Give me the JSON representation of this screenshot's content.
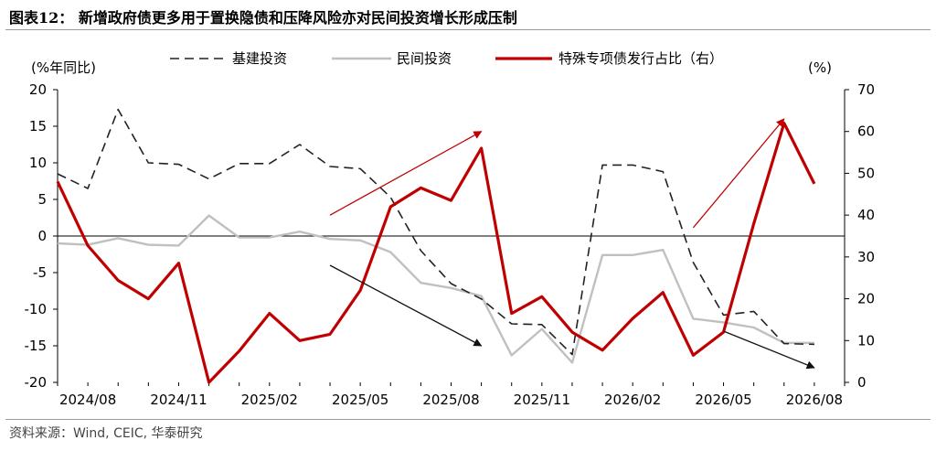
{
  "title": "图表12：  新增政府债更多用于置换隐债和压降风险亦对民间投资增长形成压制",
  "source": "资料来源：Wind, CEIC, 华泰研究",
  "colors": {
    "infra": "#222222",
    "private": "#c0c0c0",
    "special_bond": "#c00000",
    "arrow_red": "#c00000",
    "arrow_black": "#111111"
  },
  "chart_data": {
    "type": "line",
    "left_unit_label": "(%年同比)",
    "right_unit_label": "(%)",
    "x": [
      "2024/07",
      "2024/08",
      "2024/09",
      "2024/10",
      "2024/11",
      "2024/12",
      "2025/01",
      "2025/02",
      "2025/03",
      "2025/04",
      "2025/05",
      "2025/06",
      "2025/07",
      "2025/08",
      "2025/09",
      "2025/10",
      "2025/11",
      "2025/12",
      "2026/01",
      "2026/02",
      "2026/03",
      "2026/04",
      "2026/05",
      "2026/06",
      "2026/07",
      "2026/08",
      "2026/09"
    ],
    "x_tick_labels": [
      "2024/08",
      "2024/11",
      "2025/02",
      "2025/05",
      "2025/08",
      "2025/11",
      "2026/02",
      "2026/05",
      "2026/08"
    ],
    "ylim_left": [
      -20,
      20
    ],
    "yticks_left": [
      20,
      15,
      10,
      5,
      0,
      -5,
      -10,
      -15,
      -20
    ],
    "ylim_right": [
      0,
      70
    ],
    "yticks_right": [
      70,
      60,
      50,
      40,
      30,
      20,
      10,
      0
    ],
    "legend_position": "top",
    "series": [
      {
        "name": "基建投资",
        "axis": "left",
        "style": "dashed",
        "values": [
          8.5,
          6.5,
          17.3,
          10.0,
          9.8,
          7.8,
          9.9,
          9.9,
          12.5,
          9.5,
          9.2,
          5.3,
          -2.0,
          -6.5,
          -8.6,
          -12.0,
          -12.1,
          -16.2,
          9.7,
          9.7,
          8.8,
          -3.6,
          -10.8,
          -10.3,
          -14.7,
          -14.8,
          null
        ]
      },
      {
        "name": "民间投资",
        "axis": "left",
        "style": "solid",
        "values": [
          -1.0,
          -1.2,
          -0.3,
          -1.2,
          -1.3,
          2.8,
          -0.2,
          -0.2,
          0.6,
          -0.4,
          -0.6,
          -2.2,
          -6.4,
          -7.1,
          -8.2,
          -16.3,
          -12.7,
          -17.3,
          -2.6,
          -2.6,
          -1.9,
          -11.3,
          -11.8,
          -12.5,
          -14.6,
          -14.6,
          null
        ]
      },
      {
        "name": "特殊专项债发行占比（右）",
        "axis": "right",
        "style": "solid",
        "values": [
          48.0,
          32.7,
          24.4,
          20.0,
          28.5,
          0.0,
          7.5,
          16.5,
          10.0,
          11.5,
          22.0,
          42.0,
          46.5,
          43.5,
          56.0,
          16.5,
          20.5,
          12.0,
          7.7,
          15.3,
          21.5,
          6.5,
          12.0,
          38.0,
          62.0,
          47.5,
          null
        ]
      }
    ],
    "arrows": [
      {
        "color": "red",
        "from": {
          "x": "2025/04",
          "y_right": 40
        },
        "to": {
          "x": "2025/09",
          "y_right": 60
        }
      },
      {
        "color": "black",
        "from": {
          "x": "2025/04",
          "y_left": -4
        },
        "to": {
          "x": "2025/09",
          "y_left": -15
        }
      },
      {
        "color": "red",
        "from": {
          "x": "2026/04",
          "y_right": 37
        },
        "to": {
          "x": "2026/07",
          "y_right": 63
        }
      },
      {
        "color": "black",
        "from": {
          "x": "2026/05",
          "y_left": -13
        },
        "to": {
          "x": "2026/08",
          "y_left": -18
        }
      }
    ]
  }
}
